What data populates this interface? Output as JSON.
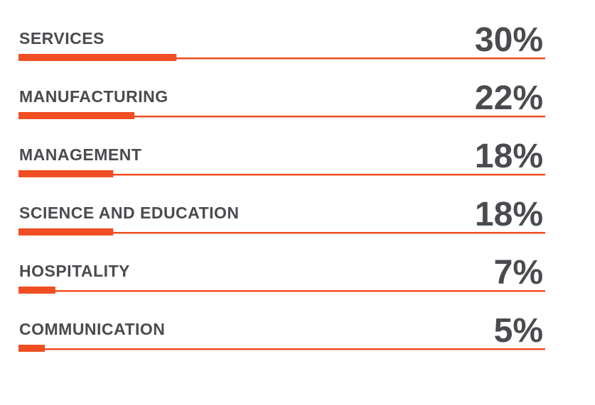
{
  "chart_data": {
    "type": "bar",
    "orientation": "horizontal",
    "categories": [
      "SERVICES",
      "MANUFACTURING",
      "MANAGEMENT",
      "SCIENCE AND EDUCATION",
      "HOSPITALITY",
      "COMMUNICATION"
    ],
    "values": [
      30,
      22,
      18,
      18,
      7,
      5
    ],
    "value_labels": [
      "30%",
      "22%",
      "18%",
      "18%",
      "7%",
      "5%"
    ],
    "color": "#f04e23",
    "xlim": [
      0,
      100
    ]
  }
}
